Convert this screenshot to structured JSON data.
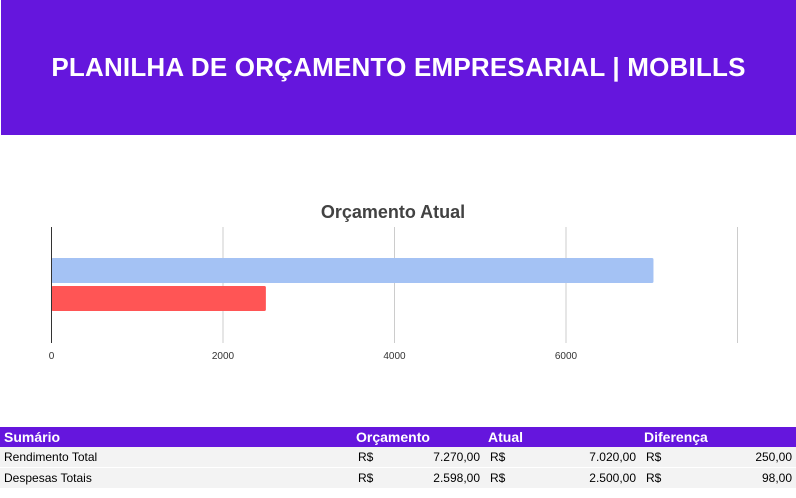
{
  "header": {
    "title": "PLANILHA DE ORÇAMENTO EMPRESARIAL | MOBILLS",
    "background_color": "#6516dd"
  },
  "chart_data": {
    "type": "bar",
    "orientation": "horizontal",
    "title": "Orçamento Atual",
    "xlabel": "",
    "ylabel": "",
    "xlim": [
      0,
      8000
    ],
    "x_ticks": [
      "0",
      "2000",
      "4000",
      "6000"
    ],
    "grid": true,
    "legend": "none",
    "series": [
      {
        "values": [
          7020
        ],
        "color": "#a4c2f4"
      },
      {
        "values": [
          2500
        ],
        "color": "#ff5555"
      }
    ]
  },
  "summary": {
    "headers": {
      "label": "Sumário",
      "budget": "Orçamento",
      "actual": "Atual",
      "difference": "Diferença"
    },
    "currency": "R$",
    "rows": [
      {
        "label": "Rendimento Total",
        "budget": "7.270,00",
        "actual": "7.020,00",
        "difference": "250,00"
      },
      {
        "label": "Despesas Totais",
        "budget": "2.598,00",
        "actual": "2.500,00",
        "difference": "98,00"
      }
    ]
  }
}
